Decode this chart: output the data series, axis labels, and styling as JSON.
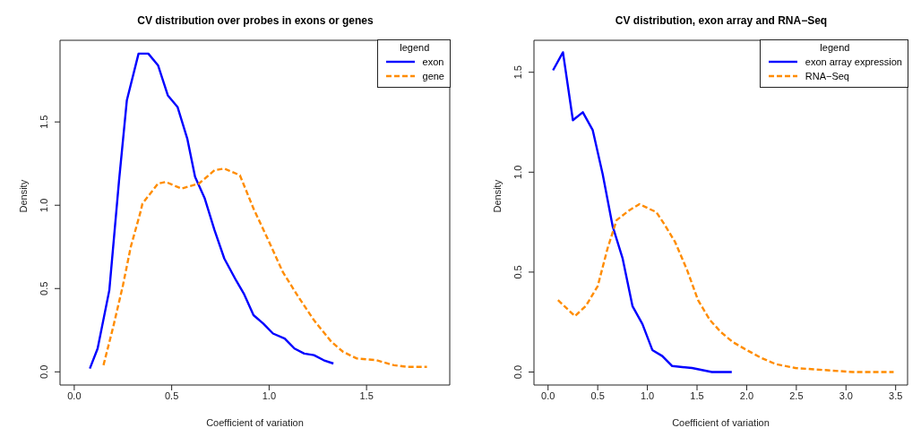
{
  "chart_data": [
    {
      "type": "line",
      "title": "CV distribution over probes in exons or genes",
      "xlabel": "Coefficient of variation",
      "ylabel": "Density",
      "legend_title": "legend",
      "legend": "top right",
      "xlim": [
        -0.073,
        1.927
      ],
      "ylim": [
        -0.079,
        1.99
      ],
      "xticks": [
        {
          "value": 0,
          "label": "0.0"
        },
        {
          "value": 0.5,
          "label": "0.5"
        },
        {
          "value": 1,
          "label": "1.0"
        },
        {
          "value": 1.5,
          "label": "1.5"
        }
      ],
      "yticks": [
        {
          "value": 0,
          "label": "0.0"
        },
        {
          "value": 0.5,
          "label": "0.5"
        },
        {
          "value": 1,
          "label": "1.0"
        },
        {
          "value": 1.5,
          "label": "1.5"
        }
      ],
      "series": [
        {
          "name": "exon",
          "color": "#0000ff",
          "line_style": "solid",
          "x": [
            0.08,
            0.12,
            0.18,
            0.23,
            0.27,
            0.33,
            0.38,
            0.43,
            0.48,
            0.53,
            0.58,
            0.62,
            0.67,
            0.72,
            0.77,
            0.83,
            0.87,
            0.92,
            0.97,
            1.02,
            1.08,
            1.13,
            1.18,
            1.23,
            1.28,
            1.33
          ],
          "values": [
            0.02,
            0.14,
            0.49,
            1.15,
            1.63,
            1.91,
            1.91,
            1.84,
            1.66,
            1.59,
            1.4,
            1.17,
            1.04,
            0.85,
            0.68,
            0.55,
            0.47,
            0.34,
            0.29,
            0.23,
            0.2,
            0.14,
            0.11,
            0.1,
            0.07,
            0.05
          ]
        },
        {
          "name": "gene",
          "color": "#ff8c00",
          "line_style": "dashed",
          "x": [
            0.15,
            0.2,
            0.25,
            0.29,
            0.34,
            0.35,
            0.43,
            0.47,
            0.55,
            0.64,
            0.72,
            0.77,
            0.85,
            0.92,
            1.0,
            1.07,
            1.15,
            1.23,
            1.32,
            1.38,
            1.45,
            1.55,
            1.64,
            1.71,
            1.81
          ],
          "values": [
            0.04,
            0.27,
            0.52,
            0.75,
            0.96,
            1.01,
            1.13,
            1.14,
            1.1,
            1.13,
            1.21,
            1.22,
            1.18,
            0.98,
            0.78,
            0.6,
            0.45,
            0.31,
            0.18,
            0.12,
            0.08,
            0.07,
            0.04,
            0.03,
            0.03
          ]
        }
      ]
    },
    {
      "type": "line",
      "title": "CV distribution, exon array and RNA−Seq",
      "xlabel": "Coefficient of variation",
      "ylabel": "Density",
      "legend_title": "legend",
      "legend": "top right",
      "xlim": [
        -0.142,
        3.62
      ],
      "ylim": [
        -0.065,
        1.66
      ],
      "xticks": [
        {
          "value": 0,
          "label": "0.0"
        },
        {
          "value": 0.5,
          "label": "0.5"
        },
        {
          "value": 1,
          "label": "1.0"
        },
        {
          "value": 1.5,
          "label": "1.5"
        },
        {
          "value": 2,
          "label": "2.0"
        },
        {
          "value": 2.5,
          "label": "2.5"
        },
        {
          "value": 3,
          "label": "3.0"
        },
        {
          "value": 3.5,
          "label": "3.5"
        }
      ],
      "yticks": [
        {
          "value": 0,
          "label": "0.0"
        },
        {
          "value": 0.5,
          "label": "0.5"
        },
        {
          "value": 1,
          "label": "1.0"
        },
        {
          "value": 1.5,
          "label": "1.5"
        }
      ],
      "series": [
        {
          "name": "exon array expression",
          "color": "#0000ff",
          "line_style": "solid",
          "x": [
            0.05,
            0.15,
            0.25,
            0.35,
            0.45,
            0.55,
            0.65,
            0.75,
            0.85,
            0.95,
            1.05,
            1.15,
            1.25,
            1.45,
            1.55,
            1.65,
            1.85
          ],
          "values": [
            1.51,
            1.6,
            1.26,
            1.3,
            1.21,
            0.99,
            0.73,
            0.57,
            0.33,
            0.24,
            0.11,
            0.08,
            0.03,
            0.02,
            0.01,
            0.0,
            0.0
          ]
        },
        {
          "name": "RNA−Seq",
          "color": "#ff8c00",
          "line_style": "dashed",
          "x": [
            0.1,
            0.27,
            0.38,
            0.5,
            0.6,
            0.69,
            0.82,
            0.92,
            1.09,
            1.17,
            1.28,
            1.4,
            1.51,
            1.63,
            1.74,
            1.86,
            2.0,
            2.15,
            2.29,
            2.49,
            2.78,
            3.07,
            3.48
          ],
          "values": [
            0.36,
            0.28,
            0.33,
            0.43,
            0.62,
            0.76,
            0.81,
            0.84,
            0.8,
            0.74,
            0.65,
            0.51,
            0.36,
            0.26,
            0.2,
            0.15,
            0.11,
            0.07,
            0.04,
            0.02,
            0.01,
            0.0,
            0.0
          ]
        }
      ]
    }
  ]
}
